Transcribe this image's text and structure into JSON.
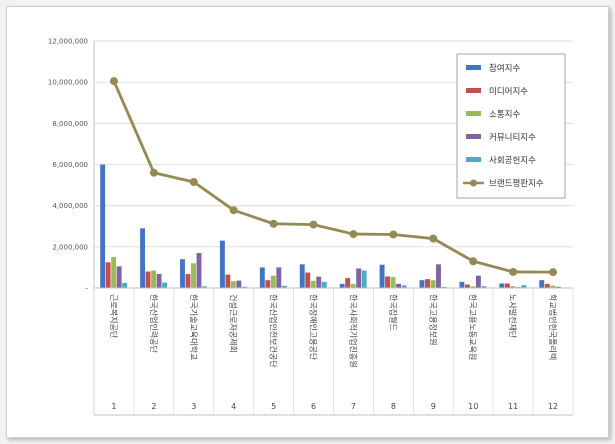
{
  "chart_data": {
    "type": "bar",
    "title": "",
    "xlabel": "",
    "ylabel": "",
    "ylim": [
      0,
      12000000
    ],
    "yticks": [
      "-",
      "2,000,000",
      "4,000,000",
      "6,000,000",
      "8,000,000",
      "10,000,000",
      "12,000,000"
    ],
    "grid": true,
    "legend_position": "top-right",
    "categories": [
      "1",
      "2",
      "3",
      "4",
      "5",
      "6",
      "7",
      "8",
      "9",
      "10",
      "11",
      "12"
    ],
    "category_names": [
      "근로복지공단",
      "한국산업인력공단",
      "한국기술교육대학교",
      "건설근로자공제회",
      "한국산업안전보건공단",
      "한국장애인고용공단",
      "한국사회적기업진흥원",
      "한국잡월드",
      "한국고용정보원",
      "한국고용노동교육원",
      "노사발전재단",
      "학교법인한국폴리텍"
    ],
    "series": [
      {
        "name": "참여지수",
        "color": "#4472c4",
        "kind": "bar",
        "values": [
          6000000,
          2900000,
          1400000,
          2300000,
          1000000,
          1150000,
          200000,
          1130000,
          380000,
          300000,
          220000,
          380000
        ]
      },
      {
        "name": "미디어지수",
        "color": "#c0504d",
        "kind": "bar",
        "values": [
          1250000,
          800000,
          680000,
          650000,
          380000,
          750000,
          480000,
          560000,
          430000,
          170000,
          220000,
          200000
        ]
      },
      {
        "name": "소통지수",
        "color": "#9bbb59",
        "kind": "bar",
        "values": [
          1500000,
          850000,
          1200000,
          330000,
          600000,
          350000,
          200000,
          530000,
          380000,
          80000,
          90000,
          120000
        ]
      },
      {
        "name": "커뮤니티지수",
        "color": "#8064a2",
        "kind": "bar",
        "values": [
          1050000,
          680000,
          1700000,
          360000,
          1000000,
          550000,
          950000,
          200000,
          1150000,
          600000,
          40000,
          60000
        ]
      },
      {
        "name": "사회공헌지수",
        "color": "#4bacc6",
        "kind": "bar",
        "values": [
          250000,
          270000,
          80000,
          60000,
          110000,
          300000,
          850000,
          130000,
          50000,
          90000,
          140000,
          0
        ]
      },
      {
        "name": "브랜드평판지수",
        "color": "#948a54",
        "kind": "line",
        "values": [
          10050000,
          5600000,
          5150000,
          3780000,
          3120000,
          3080000,
          2620000,
          2600000,
          2400000,
          1300000,
          780000,
          770000
        ]
      }
    ]
  }
}
